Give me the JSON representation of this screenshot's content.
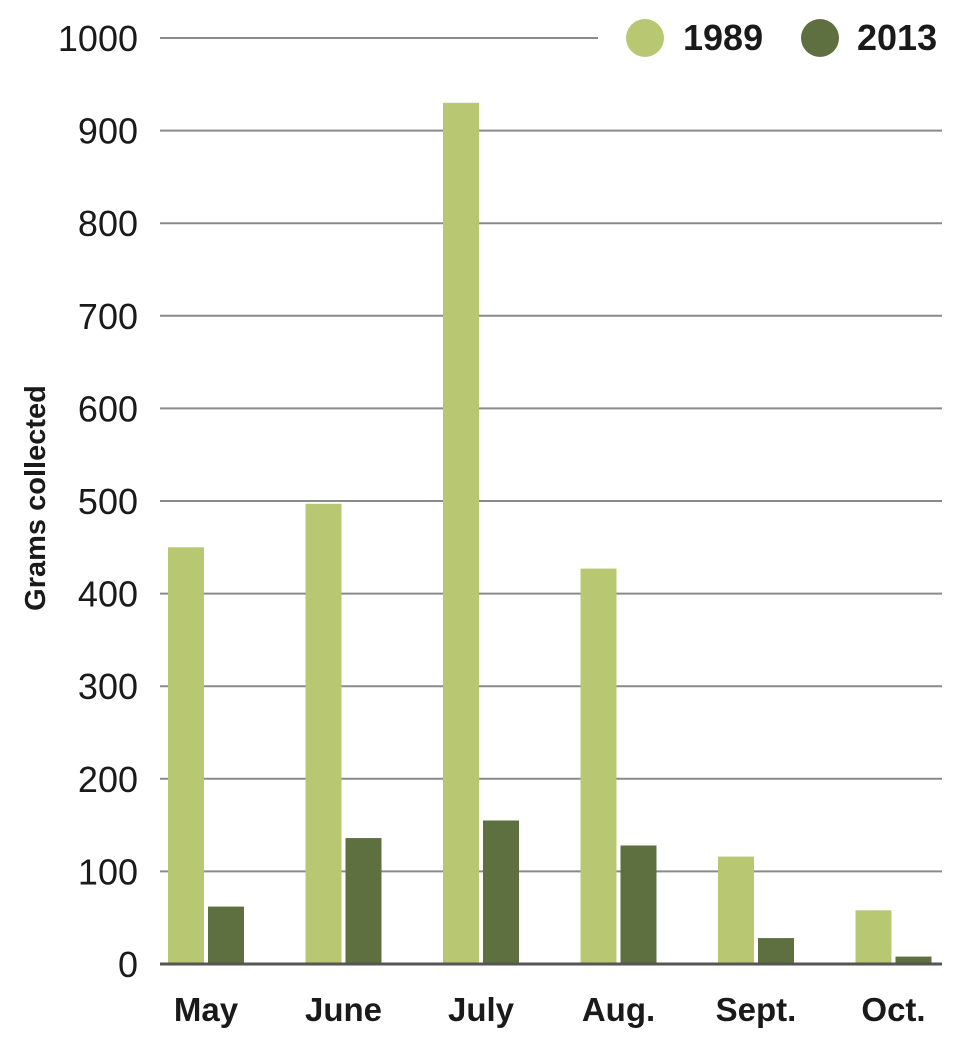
{
  "chart_data": {
    "type": "bar",
    "title": "",
    "xlabel": "",
    "ylabel": "Grams collected",
    "ylim": [
      0,
      1000
    ],
    "yticks": [
      0,
      100,
      200,
      300,
      400,
      500,
      600,
      700,
      800,
      900,
      1000
    ],
    "categories": [
      "May",
      "June",
      "July",
      "Aug.",
      "Sept.",
      "Oct."
    ],
    "series": [
      {
        "name": "1989",
        "color": "#b8c872",
        "values": [
          450,
          497,
          930,
          427,
          116,
          58
        ]
      },
      {
        "name": "2013",
        "color": "#5e7040",
        "values": [
          62,
          136,
          155,
          128,
          28,
          8
        ]
      }
    ],
    "grid": true,
    "legend_position": "top-right",
    "gridline_color": "#8a8a8a",
    "baseline_color": "#555555"
  }
}
